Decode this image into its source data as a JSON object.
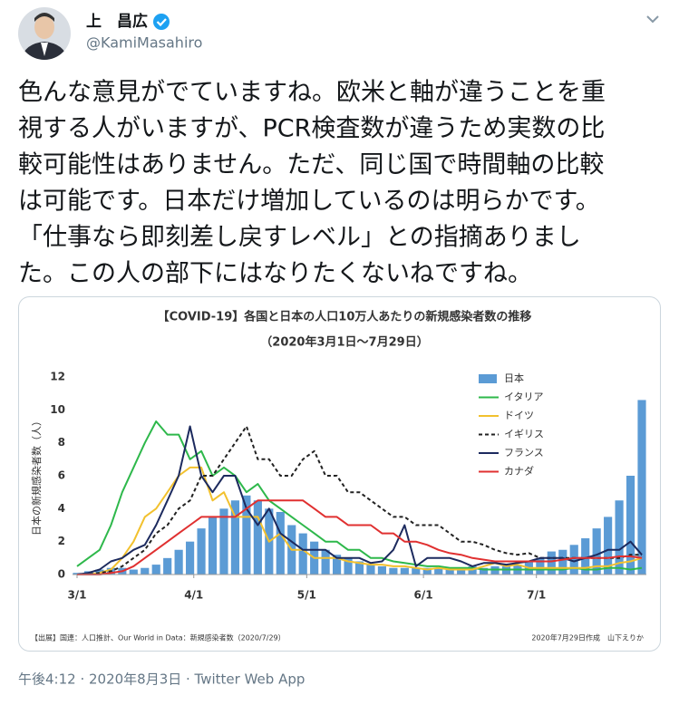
{
  "author": {
    "name": "上　昌広",
    "handle": "@KamiMasahiro"
  },
  "tweet_lines": [
    "色んな意見がでていますね。欧米と軸が違うことを重",
    "視する人がいますが、PCR検査数が違うため実数の比",
    "較可能性はありません。ただ、同じ国で時間軸の比較",
    "は可能です。日本だけ増加しているのは明らかです。",
    "「仕事なら即刻差し戻すレベル」との指摘ありまし",
    "た。この人の部下にはなりたくないねですね。"
  ],
  "timestamp": "午後4:12 · 2020年8月3日 · Twitter Web App",
  "chart_data": {
    "type": "combo",
    "title": "【COVID-19】各国と日本の人口10万人あたりの新規感染者数の推移",
    "subtitle": "（2020年3月1日～7月29日）",
    "y_label": "日本の新規感染者数（人）",
    "source": "【出展】国連：人口推計、Our World in Data：新規感染者数（2020/7/29）",
    "credit": "2020年7月29日作成　山下えりか",
    "x": [
      "3/1",
      "3/4",
      "3/7",
      "3/10",
      "3/13",
      "3/16",
      "3/19",
      "3/22",
      "3/25",
      "3/28",
      "3/31",
      "4/3",
      "4/6",
      "4/9",
      "4/12",
      "4/15",
      "4/18",
      "4/21",
      "4/24",
      "4/27",
      "4/30",
      "5/3",
      "5/6",
      "5/9",
      "5/12",
      "5/15",
      "5/18",
      "5/21",
      "5/24",
      "5/27",
      "5/30",
      "6/2",
      "6/5",
      "6/8",
      "6/11",
      "6/14",
      "6/17",
      "6/20",
      "6/23",
      "6/26",
      "6/29",
      "7/2",
      "7/5",
      "7/8",
      "7/11",
      "7/14",
      "7/17",
      "7/20",
      "7/23",
      "7/26",
      "7/29"
    ],
    "xlim": [
      "3/1",
      "7/29"
    ],
    "xticks": [
      "3/1",
      "4/1",
      "5/1",
      "6/1",
      "7/1"
    ],
    "ylim": [
      0,
      12
    ],
    "yticks": [
      0,
      2,
      4,
      6,
      8,
      10,
      12
    ],
    "series": [
      {
        "name": "日本",
        "type": "bar",
        "color": "#5b9bd5",
        "values": [
          0.1,
          0.2,
          0.3,
          0.4,
          0.4,
          0.3,
          0.4,
          0.6,
          1.0,
          1.5,
          2.0,
          2.8,
          3.5,
          4.0,
          4.5,
          4.8,
          4.5,
          4.0,
          3.8,
          3.0,
          2.5,
          2.0,
          1.5,
          1.2,
          1.0,
          0.8,
          0.6,
          0.5,
          0.4,
          0.4,
          0.4,
          0.4,
          0.4,
          0.4,
          0.4,
          0.5,
          0.4,
          0.5,
          0.5,
          0.6,
          0.8,
          1.0,
          1.4,
          1.5,
          1.8,
          2.2,
          2.8,
          3.5,
          4.5,
          6.0,
          10.6
        ]
      },
      {
        "name": "イタリア",
        "type": "line",
        "color": "#2eb84b",
        "values": [
          0.5,
          1.0,
          1.5,
          3,
          5,
          6.5,
          8,
          9.3,
          8.5,
          8.5,
          7,
          7.5,
          6,
          6.5,
          6,
          5,
          5.5,
          4.5,
          4,
          3.5,
          3,
          2.5,
          2,
          2,
          1.5,
          1.5,
          1,
          1,
          0.8,
          0.7,
          0.6,
          0.5,
          0.5,
          0.4,
          0.4,
          0.4,
          0.3,
          0.3,
          0.3,
          0.3,
          0.3,
          0.3,
          0.3,
          0.3,
          0.4,
          0.3,
          0.3,
          0.4,
          0.4,
          0.3,
          0.4
        ]
      },
      {
        "name": "ドイツ",
        "type": "line",
        "color": "#f2c12e",
        "values": [
          0,
          0,
          0.1,
          0.3,
          1,
          2,
          3.5,
          4,
          5,
          6,
          6.5,
          6.5,
          4.5,
          5,
          3.5,
          3.5,
          3.5,
          2,
          2.5,
          1.5,
          1.5,
          1,
          1,
          1,
          0.8,
          0.7,
          0.6,
          0.6,
          0.5,
          0.5,
          0.4,
          0.3,
          0.4,
          0.3,
          0.3,
          0.3,
          0.5,
          0.7,
          0.5,
          0.6,
          0.4,
          0.4,
          0.4,
          0.4,
          0.4,
          0.4,
          0.5,
          0.5,
          0.7,
          0.8,
          1.0
        ]
      },
      {
        "name": "イギリス",
        "type": "line",
        "dashed": true,
        "color": "#222222",
        "values": [
          0,
          0,
          0.1,
          0.2,
          0.5,
          1,
          1.5,
          2.5,
          3,
          4,
          4.5,
          6,
          6,
          7,
          8,
          9,
          7,
          7,
          6,
          6,
          7,
          7.5,
          6,
          6,
          5,
          5,
          4.5,
          4,
          3.5,
          3.5,
          3,
          3,
          3,
          2.5,
          2,
          2,
          1.8,
          1.5,
          1.3,
          1.2,
          1.3,
          1.0,
          1.0,
          1.0,
          1.0,
          1.0,
          1.0,
          1.0,
          1.0,
          1.2,
          1.2
        ]
      },
      {
        "name": "フランス",
        "type": "line",
        "color": "#1c2a5e",
        "values": [
          0,
          0.1,
          0.3,
          0.8,
          1,
          1.5,
          1.8,
          3,
          4.5,
          6,
          9,
          6,
          5,
          6,
          6,
          4,
          3,
          4,
          2.5,
          2,
          1.5,
          1.5,
          1.5,
          1,
          1,
          1,
          0.7,
          0.8,
          1.5,
          3,
          0.5,
          1,
          1,
          1,
          0.8,
          0.5,
          0.7,
          0.7,
          0.6,
          0.7,
          0.8,
          1,
          1,
          1,
          0.8,
          1,
          1.2,
          1.5,
          1.5,
          2,
          1.2
        ]
      },
      {
        "name": "カナダ",
        "type": "line",
        "color": "#e03030",
        "values": [
          0,
          0,
          0,
          0.1,
          0.2,
          0.5,
          1,
          1.5,
          2,
          2.5,
          3,
          3.5,
          3.5,
          3.5,
          3.5,
          4,
          4.5,
          4.5,
          4.5,
          4.5,
          4.5,
          4,
          3.5,
          3.5,
          3,
          3,
          3,
          2.5,
          2.5,
          2,
          2,
          1.8,
          1.5,
          1.3,
          1.2,
          1,
          0.9,
          0.8,
          0.8,
          0.8,
          0.8,
          0.8,
          0.8,
          0.9,
          1.0,
          1.0,
          1.0,
          1.0,
          1.1,
          1.1,
          1.0
        ]
      }
    ]
  }
}
